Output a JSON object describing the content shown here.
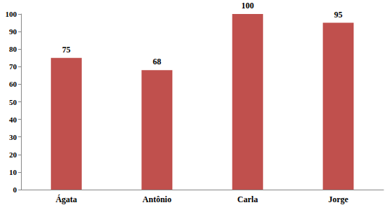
{
  "chart_data": {
    "type": "bar",
    "categories": [
      "Ágata",
      "Antônio",
      "Carla",
      "Jorge"
    ],
    "values": [
      75,
      68,
      100,
      95
    ],
    "color": "#c0504d",
    "ylim": [
      0,
      100
    ],
    "yticks": [
      0,
      10,
      20,
      30,
      40,
      50,
      60,
      70,
      80,
      90,
      100
    ],
    "grid": false,
    "data_labels": true
  }
}
